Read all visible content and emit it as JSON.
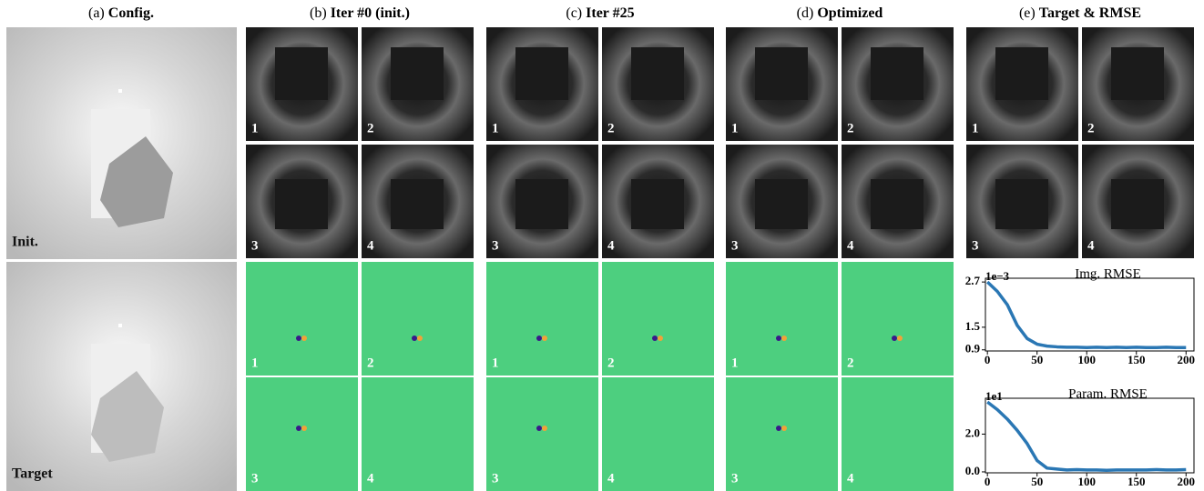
{
  "header": {
    "panels": [
      {
        "prefix": "(a)",
        "title": "Config."
      },
      {
        "prefix": "(b)",
        "title": "Iter #0 (init.)"
      },
      {
        "prefix": "(c)",
        "title": "Iter #25"
      },
      {
        "prefix": "(d)",
        "title": "Optimized"
      },
      {
        "prefix": "(e)",
        "title": "Target & RMSE"
      }
    ]
  },
  "config_labels": [
    "Init.",
    "Target"
  ],
  "cell_labels": [
    "1",
    "2",
    "3",
    "4"
  ],
  "chart_data": [
    {
      "type": "line",
      "title": "Img. RMSE",
      "offset_label": "1e−3",
      "x": [
        0,
        10,
        20,
        30,
        40,
        50,
        60,
        70,
        80,
        90,
        100,
        110,
        120,
        130,
        140,
        150,
        160,
        170,
        180,
        190,
        200
      ],
      "series": [
        {
          "name": "Img. RMSE",
          "color": "#2a77b4",
          "values": [
            2.7,
            2.45,
            2.1,
            1.55,
            1.2,
            1.05,
            1.0,
            0.98,
            0.97,
            0.97,
            0.96,
            0.97,
            0.96,
            0.97,
            0.96,
            0.97,
            0.96,
            0.96,
            0.97,
            0.96,
            0.96
          ]
        }
      ],
      "xlim": [
        -2,
        208
      ],
      "ylim": [
        0.87,
        2.8
      ],
      "xticks": [
        0,
        50,
        100,
        150,
        200
      ],
      "yticks": [
        0.9,
        1.5,
        2.7
      ]
    },
    {
      "type": "line",
      "title": "Param. RMSE",
      "offset_label": "1e1",
      "x": [
        0,
        10,
        20,
        30,
        40,
        50,
        60,
        70,
        80,
        90,
        100,
        110,
        120,
        130,
        140,
        150,
        160,
        170,
        180,
        190,
        200
      ],
      "series": [
        {
          "name": "Param. RMSE",
          "color": "#2a77b4",
          "values": [
            3.7,
            3.3,
            2.8,
            2.2,
            1.5,
            0.6,
            0.2,
            0.15,
            0.1,
            0.12,
            0.1,
            0.1,
            0.08,
            0.1,
            0.1,
            0.1,
            0.1,
            0.12,
            0.1,
            0.1,
            0.12
          ]
        }
      ],
      "xlim": [
        -2,
        208
      ],
      "ylim": [
        -0.05,
        3.9
      ],
      "xticks": [
        0,
        50,
        100,
        150,
        200
      ],
      "yticks": [
        {
          "value": 0,
          "label": "0.0"
        },
        {
          "value": 2,
          "label": "2.0"
        }
      ]
    }
  ]
}
